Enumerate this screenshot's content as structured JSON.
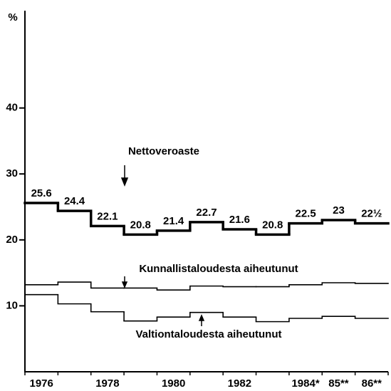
{
  "chart_data": {
    "type": "step",
    "y_axis_label": "%",
    "categories": [
      "1976",
      null,
      "1978",
      null,
      "1980",
      null,
      "1982",
      null,
      "1984*",
      "85**",
      "86**"
    ],
    "ylim": [
      0,
      54
    ],
    "yticks": [
      10,
      20,
      30,
      40
    ],
    "series": [
      {
        "name": "Nettoveroaste",
        "color": "#000000",
        "values": [
          25.6,
          24.4,
          22.1,
          20.8,
          21.4,
          22.7,
          21.6,
          20.8,
          22.5,
          23,
          22.5
        ],
        "value_labels": [
          "25.6",
          "24.4",
          "22.1",
          "20.8",
          "21.4",
          "22.7",
          "21.6",
          "20.8",
          "22.5",
          "23",
          "22½"
        ]
      },
      {
        "name": "Kunnallistaloudesta aiheutunut",
        "color": "#000000",
        "values": [
          13.2,
          13.6,
          12.7,
          12.7,
          12.4,
          13.0,
          12.9,
          12.9,
          13.2,
          13.5,
          13.4
        ]
      },
      {
        "name": "Valtiontaloudesta aiheutunut",
        "color": "#000000",
        "values": [
          11.7,
          10.3,
          9.1,
          7.7,
          8.3,
          9.0,
          8.3,
          7.6,
          8.1,
          8.4,
          8.1
        ]
      }
    ]
  }
}
